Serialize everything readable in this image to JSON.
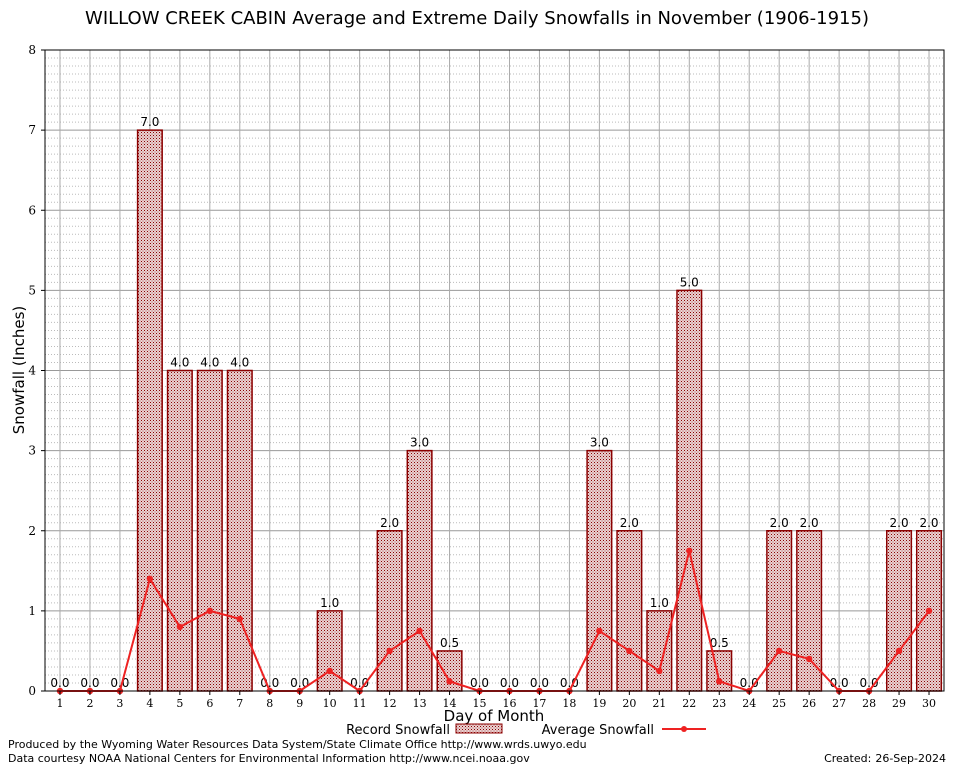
{
  "chart_data": {
    "type": "bar",
    "title": "WILLOW CREEK CABIN Average and Extreme Daily Snowfalls in November (1906-1915)",
    "xlabel": "Day of Month",
    "ylabel": "Snowfall (Inches)",
    "ylim": [
      0,
      8
    ],
    "yticks": [
      "0",
      "1",
      "2",
      "3",
      "4",
      "5",
      "6",
      "7",
      "8"
    ],
    "categories": [
      "1",
      "2",
      "3",
      "4",
      "5",
      "6",
      "7",
      "8",
      "9",
      "10",
      "11",
      "12",
      "13",
      "14",
      "15",
      "16",
      "17",
      "18",
      "19",
      "20",
      "21",
      "22",
      "23",
      "24",
      "25",
      "26",
      "27",
      "28",
      "29",
      "30"
    ],
    "series": [
      {
        "name": "Record Snowfall",
        "kind": "bar",
        "values": [
          0,
          0,
          0,
          7,
          4,
          4,
          4,
          0,
          0,
          1,
          0,
          2,
          3,
          0.5,
          0,
          0,
          0,
          0,
          3,
          2,
          1,
          5,
          0.5,
          0,
          2,
          2,
          0,
          0,
          2,
          2
        ],
        "labels": [
          "0.0",
          "0.0",
          "0.0",
          "7.0",
          "4.0",
          "4.0",
          "4.0",
          "0.0",
          "0.0",
          "1.0",
          "0.0",
          "2.0",
          "3.0",
          "0.5",
          "0.0",
          "0.0",
          "0.0",
          "0.0",
          "3.0",
          "2.0",
          "1.0",
          "5.0",
          "0.5",
          "0.0",
          "2.0",
          "2.0",
          "0.0",
          "0.0",
          "2.0",
          "2.0"
        ],
        "color": "#8b0000"
      },
      {
        "name": "Average Snowfall",
        "kind": "line",
        "values": [
          0,
          0,
          0,
          1.4,
          0.8,
          1.0,
          0.9,
          0,
          0,
          0.25,
          0,
          0.5,
          0.75,
          0.12,
          0,
          0,
          0,
          0,
          0.75,
          0.5,
          0.25,
          1.75,
          0.12,
          0,
          0.5,
          0.4,
          0,
          0,
          0.5,
          1.0
        ],
        "color": "#ee2222"
      }
    ],
    "grid": true,
    "legend": "bottom-center"
  },
  "footer": {
    "producer": "Produced by the Wyoming Water Resources Data System/State Climate Office http://www.wrds.uwyo.edu",
    "source": "Data courtesy NOAA National Centers for Environmental Information http://www.ncei.noaa.gov",
    "created_label": "Created:",
    "created_date": "26-Sep-2024"
  }
}
